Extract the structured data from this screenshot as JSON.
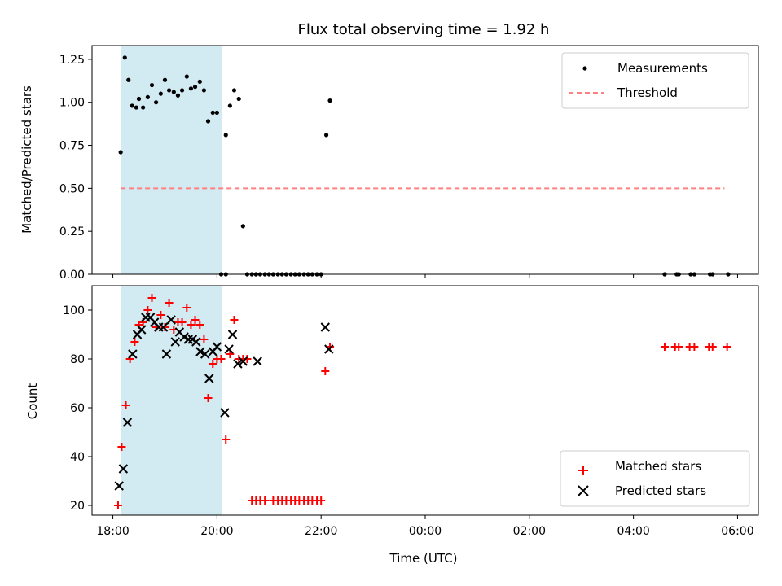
{
  "chart_data": [
    {
      "type": "scatter",
      "title": "Flux total observing time = 1.92 h",
      "xlabel": "",
      "ylabel": "Matched/Predicted stars",
      "xlim": [
        17.6,
        30.4
      ],
      "ylim": [
        0.0,
        1.33
      ],
      "yticks": [
        "0.00",
        "0.25",
        "0.50",
        "0.75",
        "1.00",
        "1.25"
      ],
      "ytick_values": [
        0.0,
        0.25,
        0.5,
        0.75,
        1.0,
        1.25
      ],
      "xtick_values": [
        18,
        20,
        22,
        24,
        26,
        28,
        30
      ],
      "shaded_interval": [
        18.15,
        20.1
      ],
      "legend": {
        "placement": "top-right",
        "entries": [
          "Measurements",
          "Threshold"
        ]
      },
      "series": [
        {
          "name": "Measurements",
          "marker": "dot",
          "color": "#000000",
          "x": [
            18.15,
            18.23,
            18.3,
            18.37,
            18.45,
            18.5,
            18.58,
            18.67,
            18.75,
            18.83,
            18.92,
            19.0,
            19.08,
            19.17,
            19.25,
            19.33,
            19.42,
            19.5,
            19.58,
            19.67,
            19.75,
            19.83,
            19.92,
            20.0,
            20.08,
            20.17,
            20.25,
            20.33,
            20.42,
            20.5,
            20.75,
            22.1,
            22.17,
            20.17,
            20.58,
            20.67,
            20.75,
            20.83,
            20.92,
            21.0,
            21.08,
            21.17,
            21.25,
            21.33,
            21.42,
            21.5,
            21.58,
            21.67,
            21.75,
            21.83,
            21.92,
            22.0,
            28.6,
            28.83,
            28.87,
            29.1,
            29.17,
            29.47,
            29.52,
            29.82
          ],
          "y": [
            0.71,
            1.26,
            1.13,
            0.98,
            0.97,
            1.02,
            0.97,
            1.03,
            1.1,
            1.0,
            1.05,
            1.13,
            1.07,
            1.06,
            1.04,
            1.07,
            1.15,
            1.08,
            1.09,
            1.12,
            1.07,
            0.89,
            0.94,
            0.94,
            0.0,
            0.81,
            0.98,
            1.07,
            1.02,
            0.28,
            0.0,
            0.81,
            1.01,
            0.0,
            0.0,
            0.0,
            0.0,
            0.0,
            0.0,
            0.0,
            0.0,
            0.0,
            0.0,
            0.0,
            0.0,
            0.0,
            0.0,
            0.0,
            0.0,
            0.0,
            0.0,
            0.0,
            0.0,
            0.0,
            0.0,
            0.0,
            0.0,
            0.0,
            0.0,
            0.0
          ]
        },
        {
          "name": "Threshold",
          "style": "dashed-line",
          "color": "#ff8080",
          "x": [
            18.15,
            29.75
          ],
          "y": [
            0.5,
            0.5
          ]
        }
      ]
    },
    {
      "type": "scatter",
      "title": "",
      "xlabel": "Time (UTC)",
      "ylabel": "Count",
      "xlim": [
        17.6,
        30.4
      ],
      "ylim": [
        16,
        110
      ],
      "yticks": [
        "20",
        "40",
        "60",
        "80",
        "100"
      ],
      "ytick_values": [
        20,
        40,
        60,
        80,
        100
      ],
      "xticks": [
        "18:00",
        "20:00",
        "22:00",
        "00:00",
        "02:00",
        "04:00",
        "06:00"
      ],
      "xtick_values": [
        18,
        20,
        22,
        24,
        26,
        28,
        30
      ],
      "shaded_interval": [
        18.15,
        20.1
      ],
      "legend": {
        "placement": "bottom-right",
        "entries": [
          "Matched stars",
          "Predicted stars"
        ]
      },
      "series": [
        {
          "name": "Matched stars",
          "marker": "plus",
          "color": "#ff0000",
          "x": [
            18.1,
            18.17,
            18.25,
            18.33,
            18.42,
            18.5,
            18.58,
            18.67,
            18.75,
            18.83,
            18.92,
            19.0,
            19.08,
            19.17,
            19.25,
            19.33,
            19.42,
            19.5,
            19.58,
            19.67,
            19.75,
            19.83,
            19.92,
            20.0,
            20.08,
            20.17,
            20.25,
            20.33,
            20.42,
            20.5,
            20.58,
            20.67,
            20.75,
            20.83,
            20.92,
            21.08,
            21.17,
            21.25,
            21.33,
            21.42,
            21.5,
            21.58,
            21.67,
            21.75,
            21.83,
            21.92,
            22.0,
            22.08,
            22.17,
            28.6,
            28.8,
            28.87,
            29.08,
            29.17,
            29.45,
            29.52,
            29.8
          ],
          "y": [
            20,
            44,
            61,
            80,
            87,
            94,
            95,
            100,
            105,
            93,
            98,
            93,
            103,
            92,
            95,
            95,
            101,
            94,
            96,
            94,
            88,
            64,
            78,
            80,
            80,
            47,
            82,
            96,
            80,
            80,
            80,
            22,
            22,
            22,
            22,
            22,
            22,
            22,
            22,
            22,
            22,
            22,
            22,
            22,
            22,
            22,
            22,
            75,
            85,
            85,
            85,
            85,
            85,
            85,
            85,
            85,
            85
          ]
        },
        {
          "name": "Predicted stars",
          "marker": "x",
          "color": "#000000",
          "x": [
            18.12,
            18.2,
            18.28,
            18.38,
            18.47,
            18.55,
            18.63,
            18.72,
            18.8,
            18.88,
            18.97,
            19.03,
            19.12,
            19.2,
            19.28,
            19.37,
            19.45,
            19.53,
            19.6,
            19.68,
            19.77,
            19.85,
            19.92,
            20.0,
            20.15,
            20.23,
            20.3,
            20.4,
            20.5,
            20.78,
            22.08,
            22.15
          ],
          "y": [
            28,
            35,
            54,
            82,
            90,
            92,
            97,
            97,
            95,
            93,
            93,
            82,
            96,
            87,
            91,
            89,
            88,
            88,
            87,
            83,
            82,
            72,
            83,
            85,
            58,
            84,
            90,
            78,
            79,
            79,
            93,
            84
          ]
        }
      ]
    }
  ]
}
